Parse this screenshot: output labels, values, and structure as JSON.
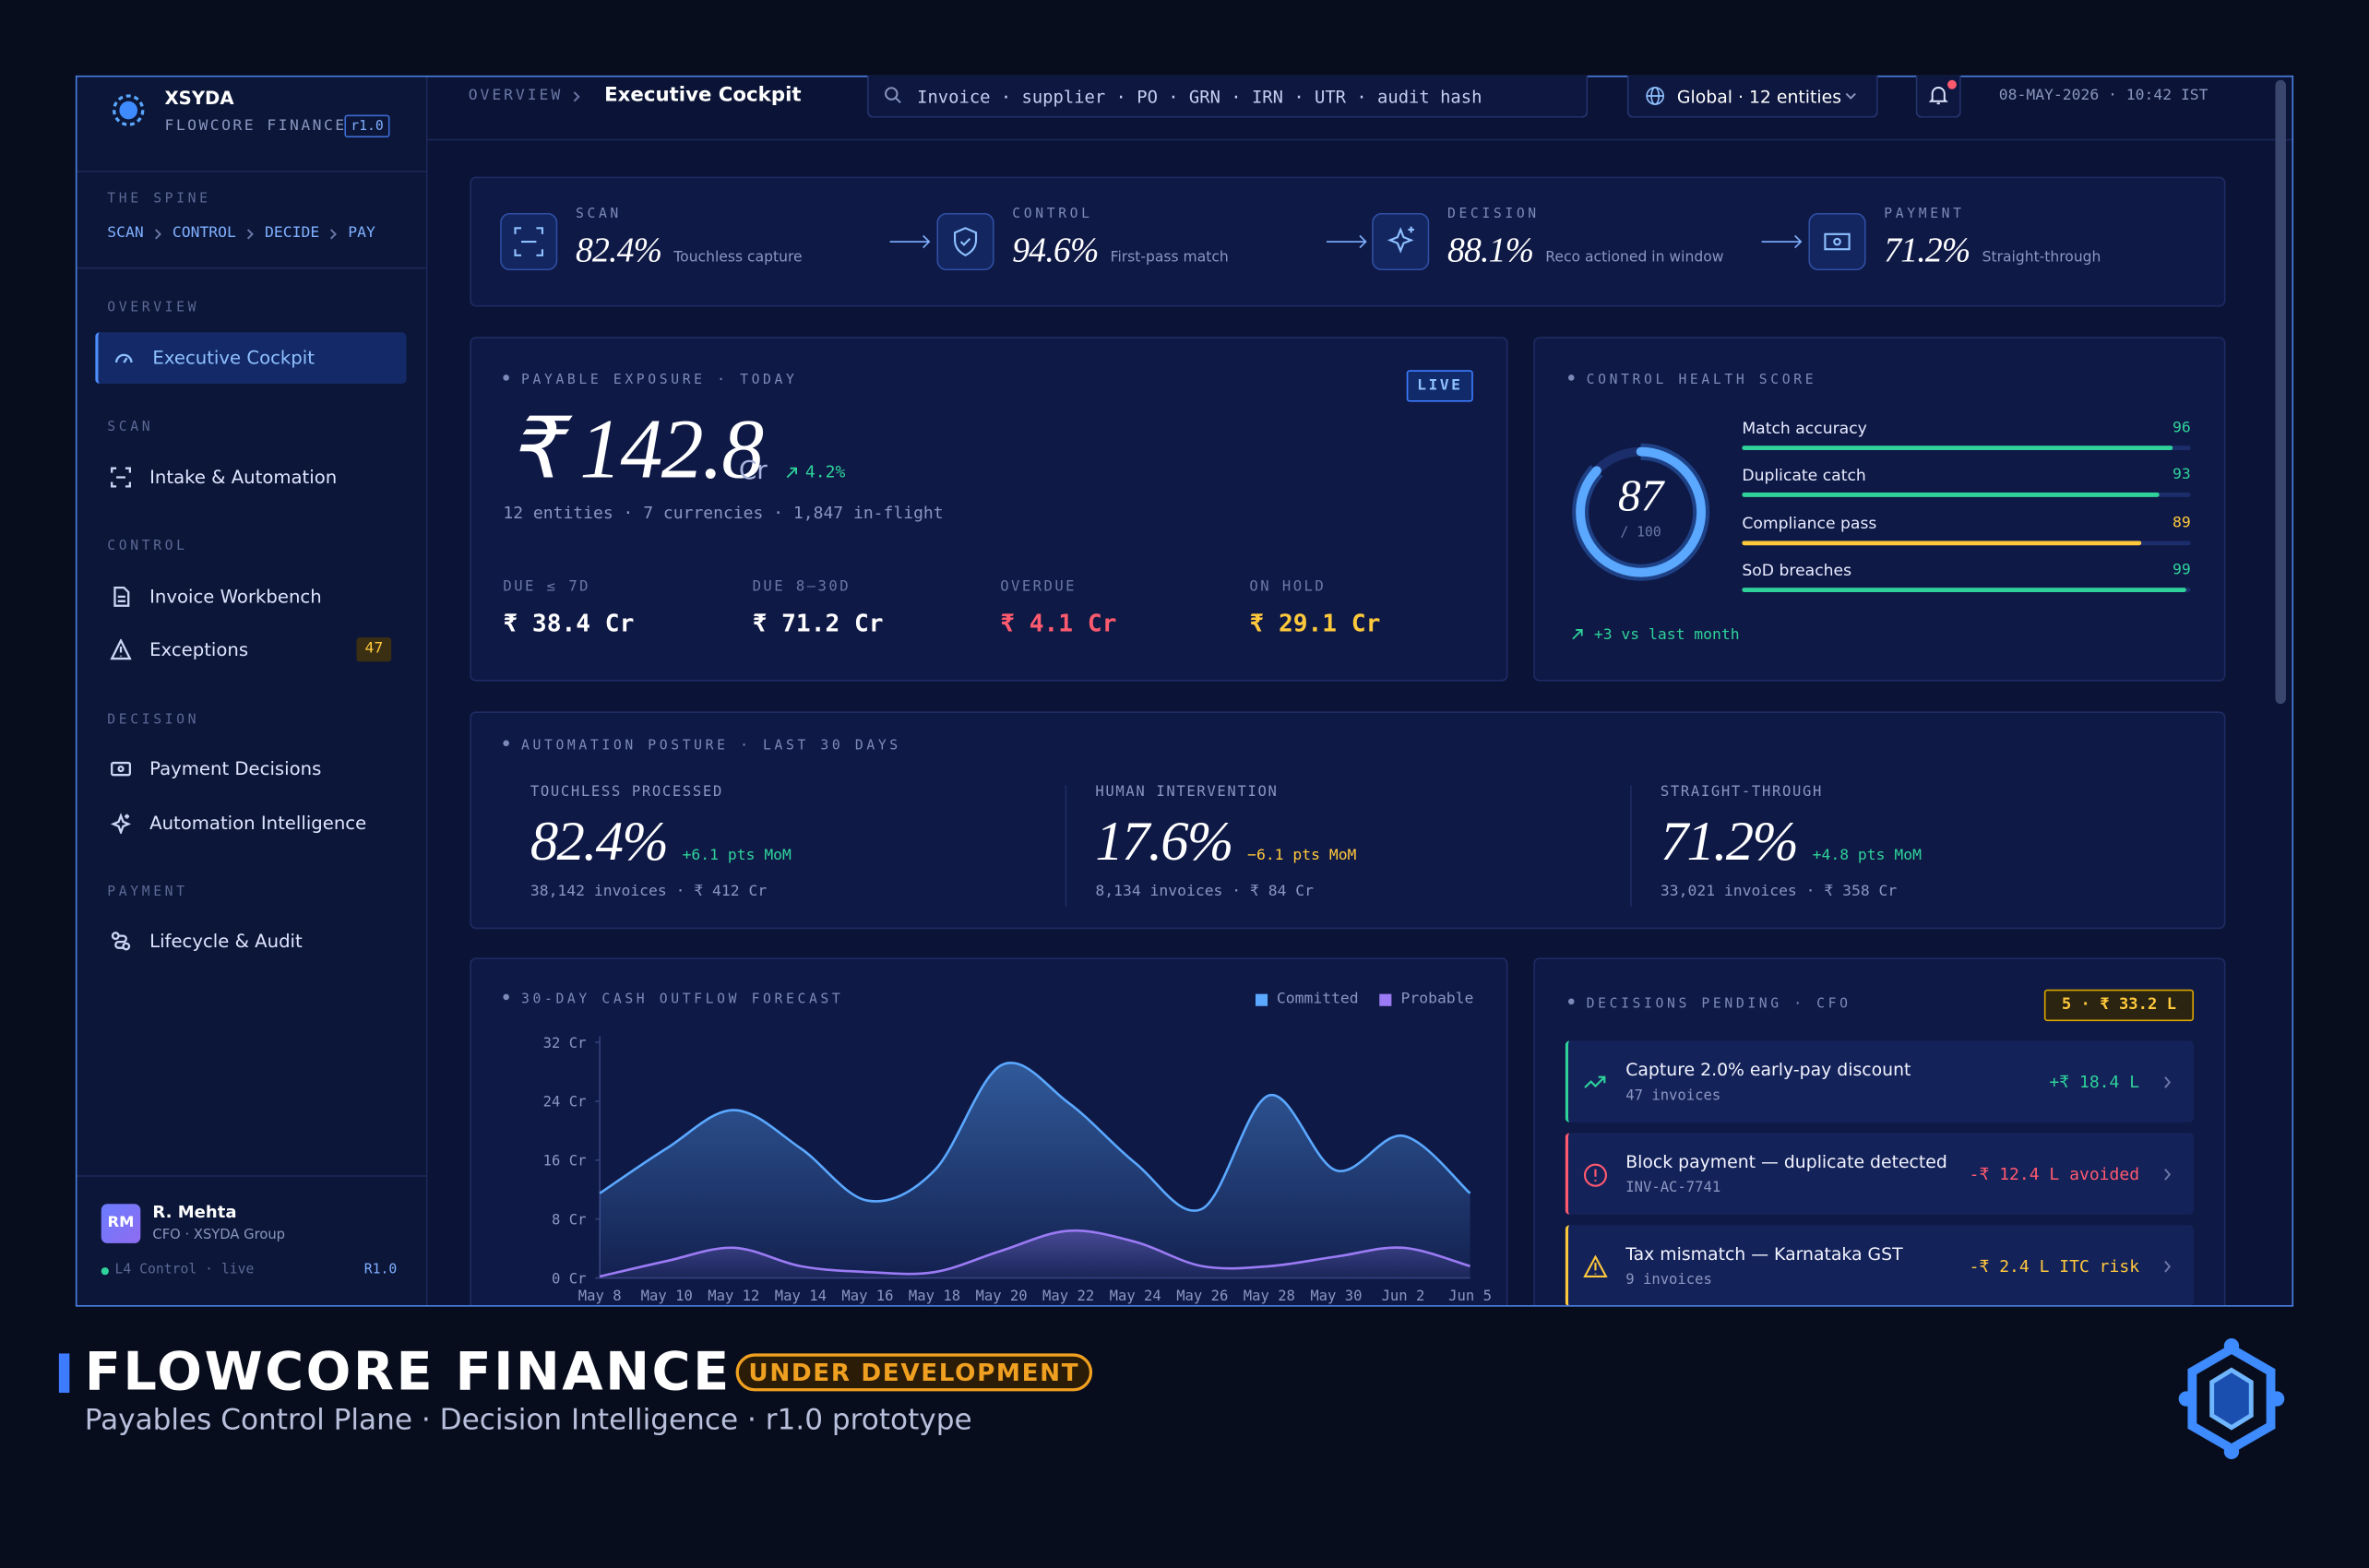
{
  "brand": {
    "name": "XSYDA",
    "product": "FLOWCORE FINANCE",
    "version": "r1.0"
  },
  "spine": {
    "label": "THE SPINE",
    "steps": [
      "SCAN",
      "CONTROL",
      "DECIDE",
      "PAY"
    ]
  },
  "nav": [
    {
      "section": "OVERVIEW",
      "items": [
        {
          "label": "Executive Cockpit"
        }
      ]
    },
    {
      "section": "SCAN",
      "items": [
        {
          "label": "Intake & Automation"
        }
      ]
    },
    {
      "section": "CONTROL",
      "items": [
        {
          "label": "Invoice Workbench"
        },
        {
          "label": "Exceptions",
          "badge": "47"
        }
      ]
    },
    {
      "section": "DECISION",
      "items": [
        {
          "label": "Payment Decisions"
        },
        {
          "label": "Automation Intelligence"
        }
      ]
    },
    {
      "section": "PAYMENT",
      "items": [
        {
          "label": "Lifecycle & Audit"
        }
      ]
    }
  ],
  "user": {
    "initials": "RM",
    "name": "R. Mehta",
    "role": "CFO · XSYDA Group",
    "status": "L4 Control · live",
    "version": "R1.0"
  },
  "topbar": {
    "breadcrumb": [
      "OVERVIEW",
      "Executive Cockpit"
    ],
    "search": "Invoice · supplier · PO · GRN · IRN · UTR · audit hash",
    "scope": "Global · 12 entities",
    "datetime": "08-MAY-2026 · 10:42 IST"
  },
  "kpis": [
    {
      "stage": "SCAN",
      "value": "82.4%",
      "caption": "Touchless capture"
    },
    {
      "stage": "CONTROL",
      "value": "94.6%",
      "caption": "First-pass match"
    },
    {
      "stage": "DECISION",
      "value": "88.1%",
      "caption": "Reco actioned in window"
    },
    {
      "stage": "PAYMENT",
      "value": "71.2%",
      "caption": "Straight-through"
    }
  ],
  "exposure": {
    "title": "PAYABLE EXPOSURE · TODAY",
    "badge": "LIVE",
    "amount": "₹ 142.8",
    "unit": "Cr",
    "change": "4.2%",
    "subtitle": "12 entities · 7 currencies · 1,847 in-flight",
    "buckets": [
      {
        "label": "DUE ≤ 7D",
        "value": "₹ 38.4 Cr",
        "color": "#ffffff"
      },
      {
        "label": "DUE 8–30D",
        "value": "₹ 71.2 Cr",
        "color": "#ffffff"
      },
      {
        "label": "OVERDUE",
        "value": "₹ 4.1 Cr",
        "color": "#ff5a6e"
      },
      {
        "label": "ON HOLD",
        "value": "₹ 29.1 Cr",
        "color": "#ffc93c"
      }
    ]
  },
  "health": {
    "title": "CONTROL HEALTH SCORE",
    "score": 87,
    "max": {
      "value": 100,
      "label": "/ 100"
    },
    "metrics": [
      {
        "name": "Match accuracy",
        "value": 96,
        "color": "#2fd39a"
      },
      {
        "name": "Duplicate catch",
        "value": 93,
        "color": "#2fd39a"
      },
      {
        "name": "Compliance pass",
        "value": 89,
        "color": "#ffc93c"
      },
      {
        "name": "SoD breaches",
        "value": 99,
        "color": "#2fd39a"
      }
    ],
    "trend": "+3 vs last month"
  },
  "automation": {
    "title": "AUTOMATION POSTURE · LAST 30 DAYS",
    "columns": [
      {
        "label": "TOUCHLESS PROCESSED",
        "value": "82.4%",
        "delta": "+6.1 pts MoM",
        "delta_color": "#2fd39a",
        "detail": "38,142 invoices · ₹ 412 Cr"
      },
      {
        "label": "HUMAN INTERVENTION",
        "value": "17.6%",
        "delta": "−6.1 pts MoM",
        "delta_color": "#ffc93c",
        "detail": "8,134 invoices · ₹ 84 Cr"
      },
      {
        "label": "STRAIGHT-THROUGH",
        "value": "71.2%",
        "delta": "+4.8 pts MoM",
        "delta_color": "#2fd39a",
        "detail": "33,021 invoices · ₹ 358 Cr"
      }
    ]
  },
  "forecast": {
    "type": "area",
    "title": "30-DAY CASH OUTFLOW FORECAST",
    "categories": [
      "May 8",
      "May 10",
      "May 12",
      "May 14",
      "May 16",
      "May 18",
      "May 20",
      "May 22",
      "May 24",
      "May 26",
      "May 28",
      "May 30",
      "Jun 2",
      "Jun 5"
    ],
    "ylim": [
      0,
      32
    ],
    "yticks": [
      {
        "value": 0,
        "label": "0 Cr"
      },
      {
        "value": 8,
        "label": "8 Cr"
      },
      {
        "value": 16,
        "label": "16 Cr"
      },
      {
        "value": 24,
        "label": "24 Cr"
      },
      {
        "value": 32,
        "label": "32 Cr"
      }
    ],
    "grid": false,
    "series": [
      {
        "name": "Committed",
        "color": "#5aa8ff",
        "values": [
          11.5,
          17.6,
          22.8,
          17.6,
          10.5,
          14.6,
          28.9,
          23.8,
          15.6,
          9.4,
          24.8,
          14.6,
          19.3,
          11.5
        ]
      },
      {
        "name": "Probable",
        "color": "#9b7bf5",
        "values": [
          0.2,
          2.3,
          4.1,
          1.6,
          0.8,
          0.8,
          3.7,
          6.4,
          4.9,
          1.6,
          1.6,
          2.9,
          4.1,
          1.6
        ]
      }
    ]
  },
  "decisions": {
    "title": "DECISIONS PENDING · CFO",
    "badge": "5 · ₹ 33.2 L",
    "items": [
      {
        "title": "Capture 2.0% early-pay discount",
        "detail": "47 invoices",
        "amount": "+₹ 18.4 L",
        "color": "#2fd39a"
      },
      {
        "title": "Block payment — duplicate detected",
        "detail": "INV-AC-7741",
        "amount": "-₹ 12.4 L avoided",
        "color": "#ff5a6e"
      },
      {
        "title": "Tax mismatch — Karnataka GST",
        "detail": "9 invoices",
        "amount": "-₹ 2.4 L ITC risk",
        "color": "#ffc93c"
      }
    ]
  },
  "footer": {
    "title": "FLOWCORE FINANCE",
    "badge": "UNDER DEVELOPMENT",
    "subtitle": "Payables Control Plane · Decision Intelligence · r1.0 prototype"
  }
}
